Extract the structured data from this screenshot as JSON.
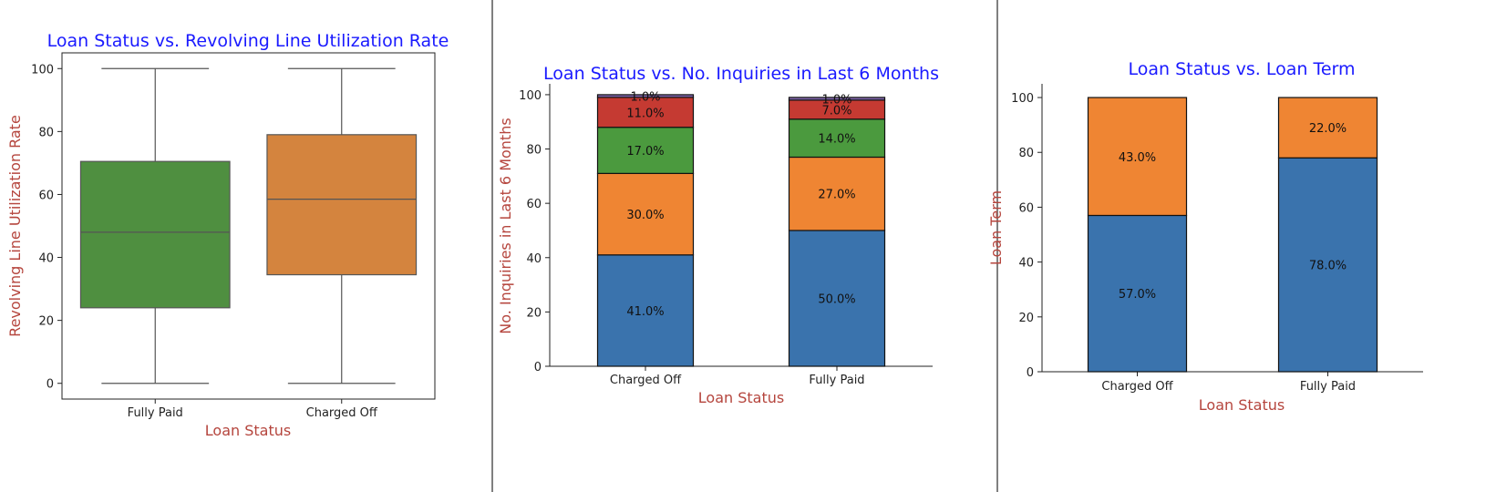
{
  "colors": {
    "title": "#1a1aff",
    "axis_label": "#b5453d",
    "divider": "#808080",
    "axis": "#222222",
    "tick_text": "#222222",
    "bar_edge": "#111111"
  },
  "chart_data": [
    {
      "type": "box",
      "title": "Loan Status vs. Revolving Line Utilization Rate",
      "xlabel": "Loan Status",
      "ylabel": "Revolving Line Utilization Rate",
      "ylim": [
        -5,
        105
      ],
      "yticks": [
        0,
        20,
        40,
        60,
        80,
        100
      ],
      "categories": [
        "Fully Paid",
        "Charged Off"
      ],
      "boxes": [
        {
          "category": "Fully Paid",
          "min": 0,
          "q1": 24,
          "median": 48,
          "q3": 70.5,
          "max": 100,
          "color": "#4f8f40"
        },
        {
          "category": "Charged Off",
          "min": 0,
          "q1": 34.5,
          "median": 58.5,
          "q3": 79,
          "max": 100,
          "color": "#d4843e"
        }
      ],
      "grid": false
    },
    {
      "type": "bar",
      "stacked": true,
      "title": "Loan Status vs. No. Inquiries in Last 6 Months",
      "xlabel": "Loan Status",
      "ylabel": "No. Inquiries in Last 6 Months",
      "ylim": [
        0,
        104
      ],
      "yticks": [
        0,
        20,
        40,
        60,
        80,
        100
      ],
      "categories": [
        "Charged Off",
        "Fully Paid"
      ],
      "series": [
        {
          "values": [
            41,
            50
          ],
          "labels": [
            "41.0%",
            "50.0%"
          ],
          "color": "#3a73ad"
        },
        {
          "values": [
            30,
            27
          ],
          "labels": [
            "30.0%",
            "27.0%"
          ],
          "color": "#ef8533"
        },
        {
          "values": [
            17,
            14
          ],
          "labels": [
            "17.0%",
            "14.0%"
          ],
          "color": "#4b9a3e"
        },
        {
          "values": [
            11,
            7
          ],
          "labels": [
            "11.0%",
            "7.0%"
          ],
          "color": "#c53a32"
        },
        {
          "values": [
            1,
            1
          ],
          "labels": [
            "1.0%",
            "1.0%"
          ],
          "color": "#7e63a8"
        }
      ],
      "grid": false
    },
    {
      "type": "bar",
      "stacked": true,
      "title": "Loan Status vs. Loan Term",
      "xlabel": "Loan Status",
      "ylabel": "Loan Term",
      "ylim": [
        0,
        105
      ],
      "yticks": [
        0,
        20,
        40,
        60,
        80,
        100
      ],
      "categories": [
        "Charged Off",
        "Fully Paid"
      ],
      "series": [
        {
          "values": [
            57,
            78
          ],
          "labels": [
            "57.0%",
            "78.0%"
          ],
          "color": "#3a73ad"
        },
        {
          "values": [
            43,
            22
          ],
          "labels": [
            "43.0%",
            "22.0%"
          ],
          "color": "#ef8533"
        }
      ],
      "grid": false
    }
  ]
}
